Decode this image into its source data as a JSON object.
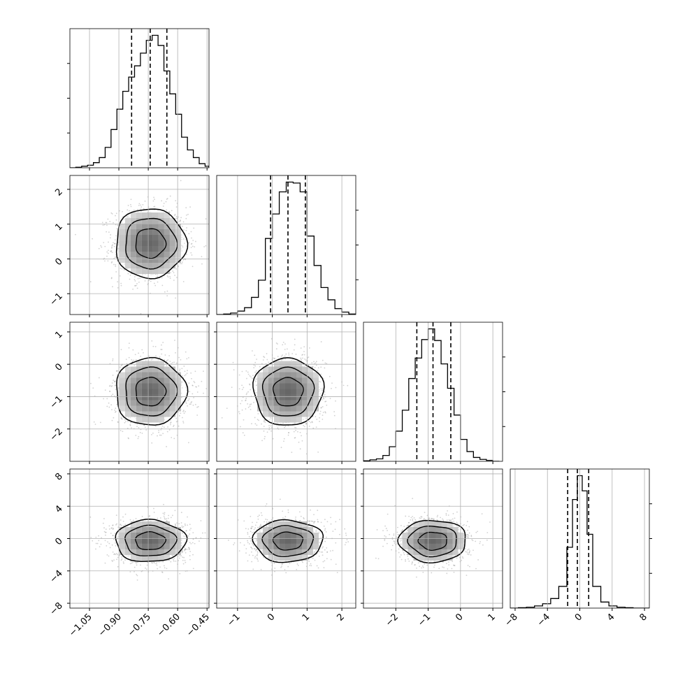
{
  "chart_data": {
    "type": "corner",
    "n_params": 4,
    "params": [
      {
        "range": [
          -1.15,
          -0.44
        ],
        "ticks": [
          -1.05,
          -0.9,
          -0.75,
          -0.6,
          -0.45
        ],
        "tick_labels": [
          "−1.05",
          "−0.90",
          "−0.75",
          "−0.60",
          "−0.45"
        ],
        "quantiles": [
          -0.835,
          -0.74,
          -0.655
        ]
      },
      {
        "range": [
          -1.6,
          2.4
        ],
        "ticks": [
          -1,
          0,
          1,
          2
        ],
        "tick_labels": [
          "−1",
          "0",
          "1",
          "2"
        ],
        "quantiles": [
          -0.05,
          0.45,
          0.95
        ]
      },
      {
        "range": [
          -3.0,
          1.3
        ],
        "ticks": [
          -2,
          -1,
          0,
          1
        ],
        "tick_labels": [
          "−2",
          "−1",
          "0",
          "1"
        ],
        "quantiles": [
          -1.35,
          -0.85,
          -0.3
        ]
      },
      {
        "range": [
          -8.6,
          8.6
        ],
        "ticks": [
          -8,
          -4,
          0,
          4,
          8
        ],
        "tick_labels": [
          "−8",
          "−4",
          "0",
          "4",
          "8"
        ],
        "quantiles": [
          -1.5,
          -0.3,
          1.1
        ]
      }
    ],
    "histograms": [
      {
        "bins": [
          -1.15,
          -1.12,
          -1.09,
          -1.06,
          -1.03,
          -1.0,
          -0.97,
          -0.94,
          -0.91,
          -0.88,
          -0.85,
          -0.82,
          -0.79,
          -0.76,
          -0.73,
          -0.7,
          -0.67,
          -0.64,
          -0.61,
          -0.58,
          -0.55,
          -0.52,
          -0.49,
          -0.46,
          -0.44
        ],
        "counts": [
          0,
          1,
          3,
          5,
          10,
          20,
          40,
          75,
          115,
          150,
          178,
          200,
          225,
          250,
          260,
          240,
          190,
          145,
          105,
          60,
          35,
          20,
          8,
          3
        ]
      },
      {
        "bins": [
          -1.6,
          -1.4,
          -1.2,
          -1.0,
          -0.8,
          -0.6,
          -0.4,
          -0.2,
          0.0,
          0.2,
          0.4,
          0.6,
          0.8,
          1.0,
          1.2,
          1.4,
          1.6,
          1.8,
          2.0,
          2.2,
          2.4
        ],
        "counts": [
          0,
          1,
          3,
          7,
          14,
          35,
          70,
          155,
          205,
          250,
          270,
          268,
          250,
          160,
          100,
          55,
          30,
          12,
          5,
          1
        ]
      },
      {
        "bins": [
          -3.0,
          -2.8,
          -2.6,
          -2.4,
          -2.2,
          -2.0,
          -1.8,
          -1.6,
          -1.4,
          -1.2,
          -1.0,
          -0.8,
          -0.6,
          -0.4,
          -0.2,
          0.0,
          0.2,
          0.4,
          0.6,
          0.8,
          1.0,
          1.2
        ],
        "counts": [
          1,
          3,
          5,
          12,
          30,
          62,
          105,
          170,
          212,
          250,
          272,
          248,
          200,
          150,
          95,
          45,
          20,
          8,
          4,
          2,
          0
        ]
      },
      {
        "bins": [
          -8.6,
          -7.6,
          -6.6,
          -5.6,
          -4.6,
          -3.6,
          -2.6,
          -1.6,
          -0.9,
          -0.3,
          0.3,
          0.9,
          1.6,
          2.6,
          3.6,
          4.6,
          5.6,
          6.6,
          7.6,
          8.6
        ],
        "counts": [
          0,
          1,
          2,
          5,
          10,
          22,
          50,
          140,
          250,
          305,
          270,
          170,
          50,
          14,
          5,
          2,
          1,
          0,
          0
        ]
      }
    ],
    "distributions": [
      {
        "mean": -0.74,
        "sd": 0.09
      },
      {
        "mean": 0.45,
        "sd": 0.5
      },
      {
        "mean": -0.85,
        "sd": 0.52
      },
      {
        "mean": -0.3,
        "sd": 1.3
      }
    ],
    "samples_per_panel": 1400,
    "contour_levels": [
      "inner",
      "middle",
      "outer"
    ],
    "colors": {
      "line": "#000000",
      "grid": "#b0b0b0",
      "scatter": "#9a9a9a",
      "background": "#ffffff"
    }
  }
}
